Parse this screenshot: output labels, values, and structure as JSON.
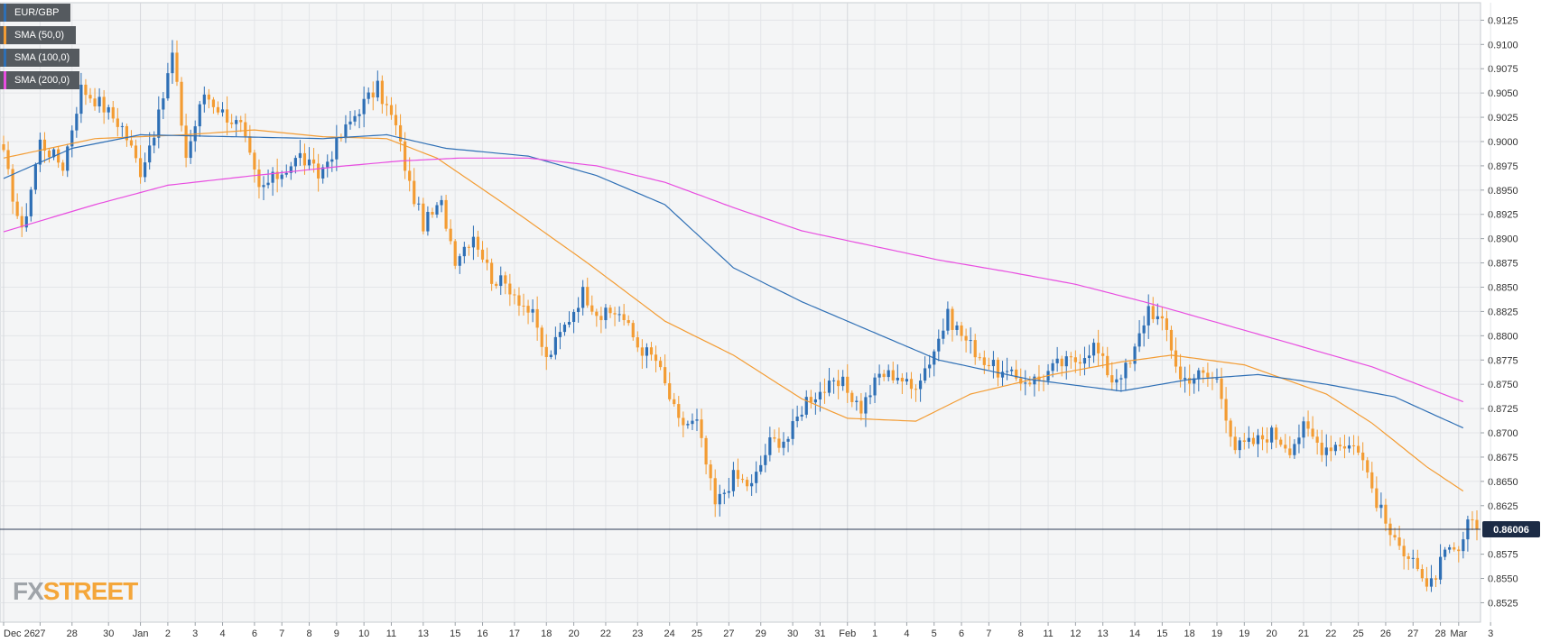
{
  "chart_data": {
    "type": "candlestick",
    "symbol": "EUR/GBP",
    "last_price_label": "0.86006",
    "last_price": 0.86006,
    "ylim": [
      0.8505,
      0.9143
    ],
    "y_ticks": [
      "0.9125",
      "0.9100",
      "0.9075",
      "0.9050",
      "0.9025",
      "0.9000",
      "0.8975",
      "0.8950",
      "0.8925",
      "0.8900",
      "0.8875",
      "0.8850",
      "0.8825",
      "0.8800",
      "0.8775",
      "0.8750",
      "0.8725",
      "0.8700",
      "0.8675",
      "0.8650",
      "0.8625",
      "0.8575",
      "0.8550",
      "0.8525"
    ],
    "x_labels": [
      {
        "label": "Dec 26",
        "i": 0
      },
      {
        "label": "27",
        "i": 8
      },
      {
        "label": "28",
        "i": 15
      },
      {
        "label": "30",
        "i": 23
      },
      {
        "label": "Jan",
        "i": 30
      },
      {
        "label": "2",
        "i": 36
      },
      {
        "label": "3",
        "i": 42
      },
      {
        "label": "4",
        "i": 48
      },
      {
        "label": "6",
        "i": 55
      },
      {
        "label": "7",
        "i": 61
      },
      {
        "label": "8",
        "i": 67
      },
      {
        "label": "9",
        "i": 73
      },
      {
        "label": "10",
        "i": 79
      },
      {
        "label": "11",
        "i": 85
      },
      {
        "label": "13",
        "i": 92
      },
      {
        "label": "15",
        "i": 99
      },
      {
        "label": "16",
        "i": 105
      },
      {
        "label": "17",
        "i": 112
      },
      {
        "label": "18",
        "i": 119
      },
      {
        "label": "20",
        "i": 125
      },
      {
        "label": "22",
        "i": 132
      },
      {
        "label": "23",
        "i": 139
      },
      {
        "label": "24",
        "i": 146
      },
      {
        "label": "25",
        "i": 152
      },
      {
        "label": "27",
        "i": 159
      },
      {
        "label": "29",
        "i": 166
      },
      {
        "label": "30",
        "i": 173
      },
      {
        "label": "31",
        "i": 179
      },
      {
        "label": "Feb",
        "i": 185
      },
      {
        "label": "1",
        "i": 191
      },
      {
        "label": "4",
        "i": 198
      },
      {
        "label": "5",
        "i": 204
      },
      {
        "label": "6",
        "i": 210
      },
      {
        "label": "7",
        "i": 216
      },
      {
        "label": "8",
        "i": 223
      },
      {
        "label": "11",
        "i": 229
      },
      {
        "label": "12",
        "i": 235
      },
      {
        "label": "13",
        "i": 241
      },
      {
        "label": "14",
        "i": 248
      },
      {
        "label": "15",
        "i": 254
      },
      {
        "label": "18",
        "i": 260
      },
      {
        "label": "19",
        "i": 266
      },
      {
        "label": "19",
        "i": 272
      },
      {
        "label": "20",
        "i": 278
      },
      {
        "label": "21",
        "i": 285
      },
      {
        "label": "22",
        "i": 291
      },
      {
        "label": "25",
        "i": 297
      },
      {
        "label": "26",
        "i": 303
      },
      {
        "label": "27",
        "i": 309
      },
      {
        "label": "28",
        "i": 315
      },
      {
        "label": "Mar",
        "i": 319
      },
      {
        "label": "3",
        "i": 326
      }
    ],
    "bar_count": 324,
    "candles_keyframes": [
      [
        0,
        0.8985
      ],
      [
        4,
        0.8905
      ],
      [
        8,
        0.9
      ],
      [
        13,
        0.8975
      ],
      [
        17,
        0.9055
      ],
      [
        21,
        0.904
      ],
      [
        26,
        0.9015
      ],
      [
        30,
        0.897
      ],
      [
        34,
        0.9025
      ],
      [
        37,
        0.909
      ],
      [
        40,
        0.8985
      ],
      [
        44,
        0.905
      ],
      [
        48,
        0.903
      ],
      [
        52,
        0.9015
      ],
      [
        56,
        0.895
      ],
      [
        60,
        0.8965
      ],
      [
        65,
        0.8985
      ],
      [
        69,
        0.8965
      ],
      [
        74,
        0.9005
      ],
      [
        78,
        0.9035
      ],
      [
        82,
        0.9055
      ],
      [
        86,
        0.9015
      ],
      [
        89,
        0.8955
      ],
      [
        92,
        0.8915
      ],
      [
        96,
        0.8935
      ],
      [
        99,
        0.888
      ],
      [
        103,
        0.8905
      ],
      [
        107,
        0.886
      ],
      [
        111,
        0.885
      ],
      [
        116,
        0.882
      ],
      [
        119,
        0.8775
      ],
      [
        123,
        0.881
      ],
      [
        127,
        0.8845
      ],
      [
        131,
        0.882
      ],
      [
        135,
        0.8825
      ],
      [
        139,
        0.879
      ],
      [
        143,
        0.8775
      ],
      [
        148,
        0.871
      ],
      [
        152,
        0.871
      ],
      [
        156,
        0.8625
      ],
      [
        160,
        0.8655
      ],
      [
        164,
        0.8645
      ],
      [
        168,
        0.869
      ],
      [
        172,
        0.8695
      ],
      [
        176,
        0.8735
      ],
      [
        180,
        0.8745
      ],
      [
        184,
        0.875
      ],
      [
        188,
        0.8725
      ],
      [
        192,
        0.876
      ],
      [
        196,
        0.876
      ],
      [
        199,
        0.8745
      ],
      [
        203,
        0.8775
      ],
      [
        207,
        0.882
      ],
      [
        211,
        0.8795
      ],
      [
        215,
        0.8775
      ],
      [
        219,
        0.876
      ],
      [
        223,
        0.8755
      ],
      [
        227,
        0.8755
      ],
      [
        231,
        0.877
      ],
      [
        235,
        0.8775
      ],
      [
        239,
        0.879
      ],
      [
        243,
        0.8755
      ],
      [
        247,
        0.877
      ],
      [
        251,
        0.883
      ],
      [
        255,
        0.8805
      ],
      [
        258,
        0.8755
      ],
      [
        262,
        0.876
      ],
      [
        266,
        0.8755
      ],
      [
        270,
        0.8685
      ],
      [
        274,
        0.869
      ],
      [
        278,
        0.87
      ],
      [
        282,
        0.8685
      ],
      [
        285,
        0.8705
      ],
      [
        289,
        0.8685
      ],
      [
        293,
        0.869
      ],
      [
        297,
        0.8685
      ],
      [
        301,
        0.863
      ],
      [
        305,
        0.8585
      ],
      [
        309,
        0.8575
      ],
      [
        312,
        0.8535
      ],
      [
        316,
        0.8575
      ],
      [
        319,
        0.8575
      ],
      [
        321,
        0.8605
      ],
      [
        323,
        0.86006
      ]
    ],
    "series": [
      {
        "name": "SMA (50,0)",
        "color": "#f39c33",
        "points": [
          [
            0,
            0.8983
          ],
          [
            20,
            0.9003
          ],
          [
            40,
            0.9007
          ],
          [
            55,
            0.9012
          ],
          [
            70,
            0.9005
          ],
          [
            84,
            0.9003
          ],
          [
            95,
            0.8983
          ],
          [
            110,
            0.8935
          ],
          [
            128,
            0.8875
          ],
          [
            145,
            0.8815
          ],
          [
            160,
            0.878
          ],
          [
            175,
            0.8735
          ],
          [
            185,
            0.8715
          ],
          [
            200,
            0.8712
          ],
          [
            212,
            0.874
          ],
          [
            230,
            0.876
          ],
          [
            245,
            0.8773
          ],
          [
            256,
            0.878
          ],
          [
            272,
            0.877
          ],
          [
            290,
            0.874
          ],
          [
            300,
            0.871
          ],
          [
            312,
            0.8665
          ],
          [
            320,
            0.864
          ]
        ]
      },
      {
        "name": "SMA (100,0)",
        "color": "#2e6fb5",
        "points": [
          [
            0,
            0.8962
          ],
          [
            15,
            0.8993
          ],
          [
            30,
            0.9007
          ],
          [
            50,
            0.9005
          ],
          [
            70,
            0.9003
          ],
          [
            84,
            0.9007
          ],
          [
            97,
            0.8993
          ],
          [
            115,
            0.8985
          ],
          [
            130,
            0.8965
          ],
          [
            145,
            0.8935
          ],
          [
            160,
            0.887
          ],
          [
            175,
            0.8835
          ],
          [
            190,
            0.8805
          ],
          [
            205,
            0.8775
          ],
          [
            225,
            0.8755
          ],
          [
            245,
            0.8743
          ],
          [
            260,
            0.8755
          ],
          [
            275,
            0.876
          ],
          [
            290,
            0.875
          ],
          [
            305,
            0.8737
          ],
          [
            320,
            0.8705
          ]
        ]
      },
      {
        "name": "SMA (200,0)",
        "color": "#e84de0",
        "points": [
          [
            0,
            0.8907
          ],
          [
            20,
            0.8935
          ],
          [
            36,
            0.8955
          ],
          [
            55,
            0.8965
          ],
          [
            75,
            0.8975
          ],
          [
            87,
            0.898
          ],
          [
            100,
            0.8983
          ],
          [
            115,
            0.8983
          ],
          [
            130,
            0.8975
          ],
          [
            145,
            0.8958
          ],
          [
            160,
            0.8932
          ],
          [
            175,
            0.8908
          ],
          [
            190,
            0.8893
          ],
          [
            205,
            0.8878
          ],
          [
            220,
            0.8866
          ],
          [
            235,
            0.8853
          ],
          [
            250,
            0.8835
          ],
          [
            265,
            0.8815
          ],
          [
            280,
            0.8795
          ],
          [
            300,
            0.8768
          ],
          [
            320,
            0.8732
          ]
        ]
      }
    ],
    "up_color": "#2e6fb5",
    "down_color": "#f39c33",
    "grid": true
  },
  "legend": [
    {
      "label": "EUR/GBP",
      "color": "#2e6fb5",
      "width": 78
    },
    {
      "label": "SMA (50,0)",
      "color": "#f39c33",
      "width": 84
    },
    {
      "label": "SMA (100,0)",
      "color": "#2e6fb5",
      "width": 88
    },
    {
      "label": "SMA (200,0)",
      "color": "#e84de0",
      "width": 88
    }
  ],
  "watermark": {
    "left": "FX",
    "right": "STREET"
  }
}
